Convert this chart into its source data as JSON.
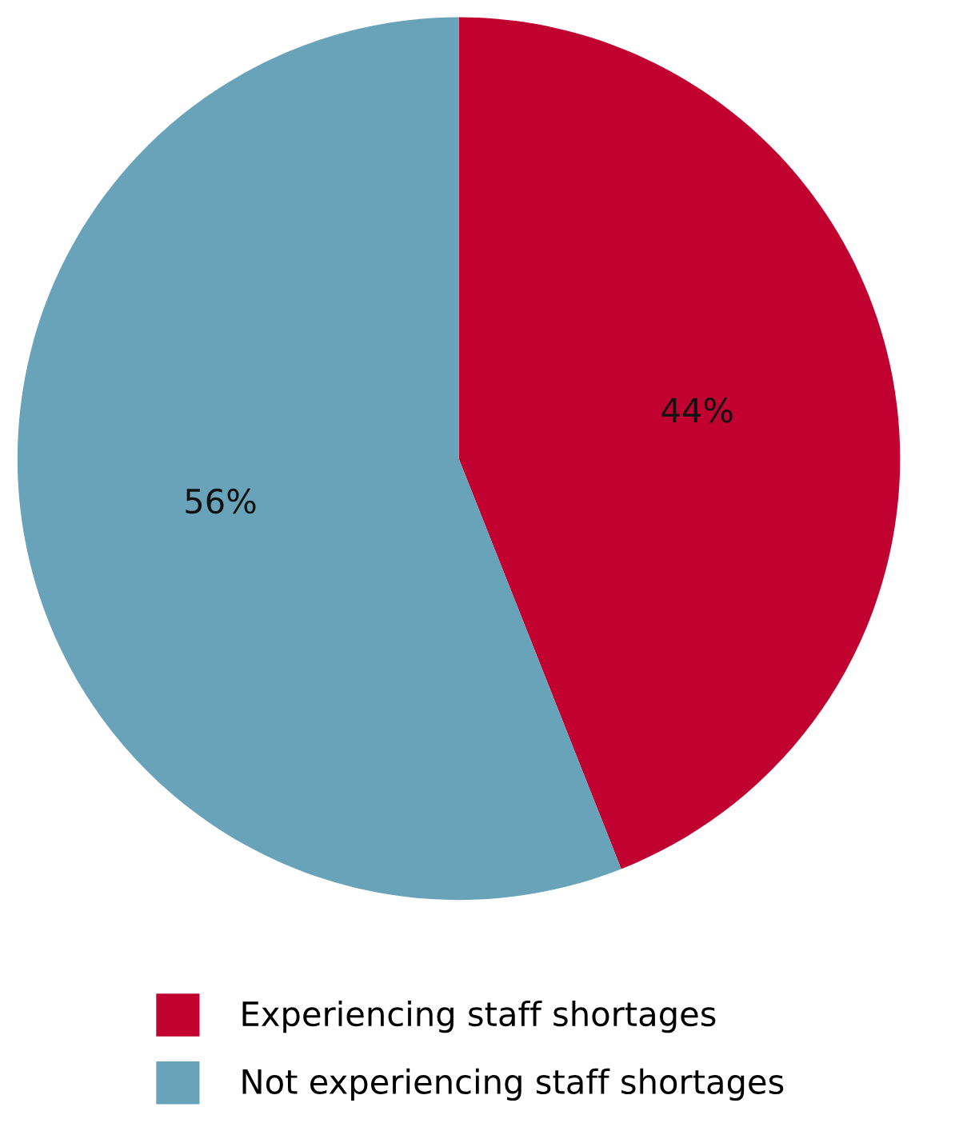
{
  "chart_data": {
    "type": "pie",
    "categories": [
      "Experiencing staff shortages",
      "Not experiencing staff shortages"
    ],
    "values": [
      44,
      56
    ],
    "colors": [
      "#c10230",
      "#68a3ba"
    ],
    "value_labels": [
      "44%",
      "56%"
    ],
    "legend": "bottom"
  }
}
